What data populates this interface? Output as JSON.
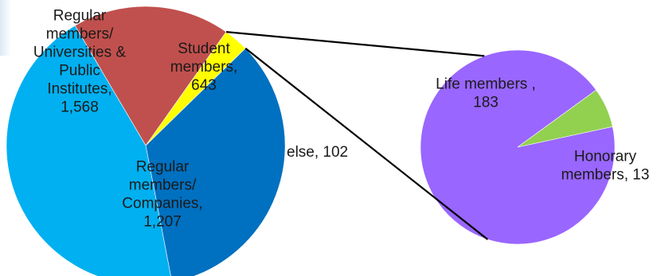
{
  "chart_data": [
    {
      "type": "pie",
      "title": "",
      "slices": [
        {
          "label_lines": [
            "Student",
            "members,",
            "643"
          ],
          "value": 643,
          "color": "#c0504d"
        },
        {
          "label_lines": [
            "else, 102"
          ],
          "value": 102,
          "color": "#ffff00"
        },
        {
          "label_lines": [
            "Regular",
            "members/",
            "Companies,",
            "1,207"
          ],
          "value": 1207,
          "color": "#0070c0"
        },
        {
          "label_lines": [
            "Regular",
            "members/",
            "Universities &",
            "Public",
            "Institutes,",
            "1,568"
          ],
          "value": 1568,
          "color": "#00b0f0"
        }
      ]
    },
    {
      "type": "pie",
      "title": "",
      "slices": [
        {
          "label_lines": [
            "Life members ,",
            "183"
          ],
          "value": 183,
          "color": "#9966ff"
        },
        {
          "label_lines": [
            "Honorary",
            "members, 13"
          ],
          "value": 13,
          "color": "#92d050"
        }
      ]
    }
  ],
  "colors": {
    "connector": "#000000",
    "background": "#ffffff"
  }
}
